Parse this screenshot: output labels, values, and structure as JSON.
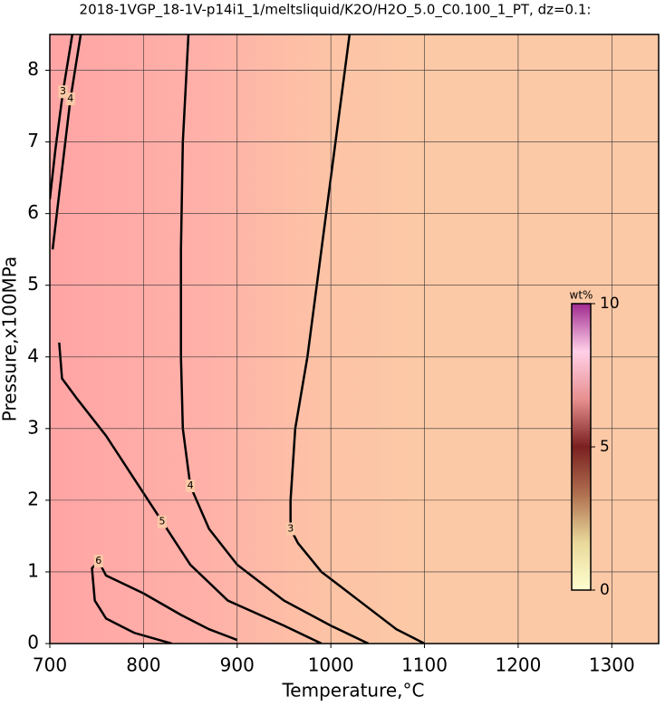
{
  "chart_data": {
    "type": "contour",
    "title": "2018-1VGP_18-1V-p14i1_1/meltsliquid/K2O/H2O_5.0_C0.100_1_PT, dz=0.1:",
    "x_label": "Temperature,°C",
    "y_label": "Pressure,x100MPa",
    "xlim": [
      700,
      1350
    ],
    "ylim": [
      0,
      8.5
    ],
    "xticks": [
      700,
      800,
      900,
      1000,
      1100,
      1200,
      1300
    ],
    "yticks": [
      0,
      1,
      2,
      3,
      4,
      5,
      6,
      7,
      8
    ],
    "grid": true,
    "contours": [
      {
        "level": 3,
        "x": [
          1020,
          1005,
          990,
          975,
          962,
          957,
          957,
          965,
          990,
          1030,
          1070,
          1100
        ],
        "y": [
          8.5,
          7,
          5.5,
          4,
          3,
          2,
          1.6,
          1.4,
          1,
          0.6,
          0.2,
          0
        ]
      },
      {
        "level": 4,
        "x": [
          848,
          842,
          840,
          840,
          842,
          850,
          870,
          900,
          950,
          1000,
          1040
        ],
        "y": [
          8.5,
          7,
          5.5,
          4,
          3,
          2.2,
          1.6,
          1.1,
          0.6,
          0.25,
          0
        ]
      },
      {
        "level": 5,
        "x": [
          710,
          713,
          730,
          760,
          790,
          820,
          850,
          890,
          950,
          990
        ],
        "y": [
          4.2,
          3.7,
          3.4,
          2.9,
          2.3,
          1.7,
          1.1,
          0.6,
          0.25,
          0
        ]
      },
      {
        "level": 6,
        "x": [
          830,
          790,
          760,
          748,
          745,
          752,
          760,
          800,
          840,
          870,
          900
        ],
        "y": [
          0,
          0.15,
          0.35,
          0.6,
          1.05,
          1.15,
          0.95,
          0.7,
          0.4,
          0.2,
          0.05
        ]
      },
      {
        "level": 3,
        "x": [
          700,
          706,
          714,
          724
        ],
        "y": [
          6.2,
          6.9,
          7.7,
          8.5
        ]
      },
      {
        "level": 4,
        "x": [
          703,
          712,
          722,
          733
        ],
        "y": [
          5.5,
          6.5,
          7.6,
          8.5
        ]
      }
    ],
    "colorbar": {
      "label": "wt%",
      "lim": [
        0,
        10
      ],
      "ticks": [
        0,
        5,
        10
      ],
      "colormap": [
        "#ffffd0",
        "#e8d89a",
        "#b07050",
        "#7a2020",
        "#e89090",
        "#ffd0e8",
        "#a02a90"
      ]
    }
  }
}
